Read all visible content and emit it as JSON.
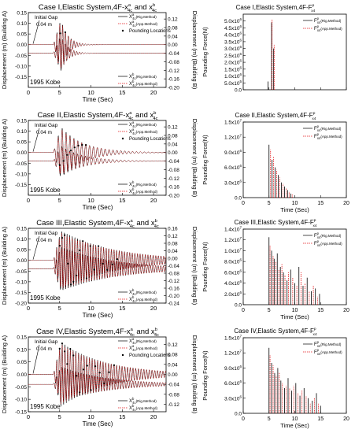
{
  "figure_caption": "",
  "chart_data": [
    {
      "type": "line",
      "panel": "left-1",
      "title": "Case I,Elastic System,4F-x^a_4c and x^b_4c",
      "title_parts": {
        "main": "Case I,Elastic System,4F-x",
        "sup_a": "a",
        "sub_a": "4c",
        "and": " and x",
        "sup_b": "b",
        "sub_b": "4c"
      },
      "xlabel": "Time (Sec)",
      "ylabel_left": "Displacement (m) (Building A)",
      "ylabel_right": "Displacement (m) (Building B)",
      "xlim": [
        0,
        22
      ],
      "ylim_left": [
        -0.2,
        0.15
      ],
      "ylim_right": [
        -0.2,
        0.15
      ],
      "xticks": [
        0,
        5,
        10,
        15,
        20
      ],
      "yticks_left": [
        -0.15,
        -0.1,
        -0.05,
        0.0,
        0.05,
        0.1,
        0.15
      ],
      "yticks_right": [
        -0.2,
        -0.16,
        -0.12,
        -0.08,
        -0.04,
        0.0,
        0.04,
        0.08,
        0.12
      ],
      "annotations": [
        "Initial Gap",
        "0.04 m",
        "1995 Kobe"
      ],
      "legend_top": [
        "X^a_4c(Rig.Method)",
        "X^a_4c(App.Method)",
        "Pounding Locations"
      ],
      "legend_bottom": [
        "X^b_4c(Rig.Method)",
        "X^b_4c(App.Method)"
      ],
      "excitation_onset": 4,
      "peak_a": 0.12,
      "peak_b": -0.15,
      "decay": 0.9,
      "frequency": 2.2,
      "pounding_times": [
        5.1,
        5.9
      ]
    },
    {
      "type": "line",
      "panel": "left-2",
      "title": "Case II,Elastic System,4F-x^a_4c and x^b_4c",
      "title_parts": {
        "main": "Case II,Elastic System,4F-x",
        "sup_a": "a",
        "sub_a": "4c",
        "and": " and x",
        "sup_b": "b",
        "sub_b": "4c"
      },
      "xlabel": "Time (Sec)",
      "ylabel_left": "Displacement (m) (Building A)",
      "ylabel_right": "Displacement (m) (Building B)",
      "xlim": [
        0,
        22
      ],
      "ylim_left": [
        -0.2,
        0.15
      ],
      "ylim_right": [
        -0.2,
        0.15
      ],
      "xticks": [
        0,
        5,
        10,
        15,
        20
      ],
      "yticks_left": [
        -0.15,
        -0.1,
        -0.05,
        0.0,
        0.05,
        0.1,
        0.15
      ],
      "yticks_right": [
        -0.2,
        -0.16,
        -0.12,
        -0.08,
        -0.04,
        0.0,
        0.04,
        0.08,
        0.12
      ],
      "annotations": [
        "Initial Gap",
        "0.04 m",
        "1995 Kobe"
      ],
      "legend_top": [
        "X^a_4c(Rig.Method)",
        "X^a_4c(App.Method)",
        "Pounding Locations"
      ],
      "legend_bottom": [
        "X^b_4c(Rig.Method)",
        "X^b_4c(App.Method)"
      ],
      "excitation_onset": 4,
      "peak_a": 0.12,
      "peak_b": -0.13,
      "decay": 0.28,
      "frequency": 1.6,
      "pounding_times": [
        5.0,
        5.6,
        6.2,
        6.8,
        7.4,
        8.0,
        8.6,
        9.2
      ]
    },
    {
      "type": "line",
      "panel": "left-3",
      "title": "Case III,Elastic System,4F-x^a_4c and x^b_4c",
      "title_parts": {
        "main": "Case III,Elastic System,4F-x",
        "sup_a": "a",
        "sub_a": "4c",
        "and": " and x",
        "sup_b": "b",
        "sub_b": "4c"
      },
      "xlabel": "Time (Sec)",
      "ylabel_left": "Displacement (m) (Building A)",
      "ylabel_right": "Displacement (m) (Building B)",
      "xlim": [
        0,
        22
      ],
      "ylim_left": [
        -0.2,
        0.15
      ],
      "ylim_right": [
        -0.24,
        0.16
      ],
      "xticks": [
        0,
        5,
        10,
        15,
        20
      ],
      "yticks_left": [
        -0.2,
        -0.15,
        -0.1,
        -0.05,
        0.0,
        0.05,
        0.1,
        0.15
      ],
      "yticks_right": [
        -0.24,
        -0.2,
        -0.16,
        -0.12,
        -0.08,
        -0.04,
        0.0,
        0.04,
        0.08,
        0.12,
        0.16
      ],
      "annotations": [
        "Initial Gap",
        "0.04 m",
        "1995 Kobe"
      ],
      "legend_top": [],
      "legend_bottom": [
        "X^b_4c(Rig.Method)",
        "X^b_4c(App.Method)"
      ],
      "excitation_onset": 4,
      "peak_a": 0.14,
      "peak_b": -0.19,
      "decay": 0.12,
      "frequency": 2.4,
      "pounding_times": [
        5.0,
        5.4,
        5.8,
        6.3,
        6.8,
        7.2,
        7.7,
        8.2,
        8.7,
        9.3,
        9.9,
        10.5,
        11.2,
        11.9,
        12.6,
        13.4,
        14.2
      ]
    },
    {
      "type": "line",
      "panel": "left-4",
      "title": "Case IV,Elastic System,4F-x^a_4c and x^b_4c",
      "title_parts": {
        "main": "Case IV,Elastic System,4F-x",
        "sup_a": "a",
        "sub_a": "4c",
        "and": " and x",
        "sup_b": "b",
        "sub_b": "4c"
      },
      "xlabel": "Time (Sec)",
      "ylabel_left": "Displacement (m) (Building A)",
      "ylabel_right": "Displacement (m) (Building B)",
      "xlim": [
        0,
        22
      ],
      "ylim_left": [
        -0.15,
        0.15
      ],
      "ylim_right": [
        -0.15,
        0.15
      ],
      "xticks": [
        0,
        5,
        10,
        15,
        20
      ],
      "yticks_left": [
        -0.15,
        -0.1,
        -0.05,
        0.0,
        0.05,
        0.1,
        0.15
      ],
      "yticks_right": [
        -0.12,
        -0.08,
        -0.04,
        0.0,
        0.04,
        0.08,
        0.12
      ],
      "annotations": [
        "Initial Gap",
        "0.04 m",
        "1995 Kobe"
      ],
      "legend_top": [
        "X^a_4c(Rig.Method)",
        "X^a_4c(App.Method)",
        "Pounding Locations"
      ],
      "legend_bottom": [
        "X^b_4c(Rig.Method)",
        "X^b_4c(App.Method)"
      ],
      "excitation_onset": 4,
      "peak_a": 0.13,
      "peak_b": -0.13,
      "decay": 0.14,
      "frequency": 2.3,
      "pounding_times": [
        5.0,
        5.4,
        5.8,
        6.2,
        6.7,
        7.2,
        7.7,
        8.2,
        8.8,
        9.4,
        10.0,
        10.7,
        11.4,
        12.1,
        12.9,
        13.7
      ]
    },
    {
      "type": "bar",
      "panel": "right-1",
      "title": "Case I,Elastic System,4F-F^p_x4",
      "title_parts": {
        "main": "Case I,Elastic System,4F-F",
        "sup": "p",
        "sub": "x4"
      },
      "ylabel": "Pounding Force(N)",
      "xlabel": "",
      "xlim": [
        0,
        20
      ],
      "ylim": [
        0,
        5500000
      ],
      "xticks": [
        0,
        5,
        10,
        15,
        20
      ],
      "ytick_labels": [
        "0.0",
        "5.0x10^5",
        "1.0x10^6",
        "1.5x10^6",
        "2.0x10^6",
        "2.5x10^6",
        "3.0x10^6",
        "3.5x10^6",
        "4.0x10^6",
        "4.5x10^6",
        "5.0x10^6"
      ],
      "yticks": [
        0,
        500000,
        1000000,
        1500000,
        2000000,
        2500000,
        3000000,
        3500000,
        4000000,
        4500000,
        5000000
      ],
      "legend": [
        "F^p_x4(Rig.Method)",
        "F^p_x4(App.Method)"
      ],
      "series": [
        {
          "name": "F^p_x4(Rig.Method)",
          "x": [
            4.8,
            5.5,
            5.9
          ],
          "values": [
            600000,
            4900000,
            3000000
          ]
        },
        {
          "name": "F^p_x4(App.Method)",
          "x": [
            5.6,
            6.0
          ],
          "values": [
            5100000,
            3300000
          ]
        }
      ]
    },
    {
      "type": "bar",
      "panel": "right-2",
      "title": "Case II,Elastic System,4F-F^p_x4",
      "title_parts": {
        "main": "Case II,Elastic System,4F-F",
        "sup": "p",
        "sub": "x4"
      },
      "ylabel": "Pounding Force(N)",
      "xlabel": "Time (Sec)",
      "xlim": [
        0,
        20
      ],
      "ylim": [
        0,
        15000000
      ],
      "xticks": [
        0,
        5,
        10,
        15,
        20
      ],
      "ytick_labels": [
        "0.0",
        "3.0x10^6",
        "6.0x10^6",
        "9.0x10^6",
        "1.2x10^7",
        "1.5x10^7"
      ],
      "yticks": [
        0,
        3000000,
        6000000,
        9000000,
        12000000,
        15000000
      ],
      "legend": [
        "F^p_x4(Rig.Method)",
        "F^p_x4(App.Method)"
      ],
      "series": [
        {
          "name": "F^p_x4(Rig.Method)",
          "x": [
            5.0,
            5.6,
            6.2,
            6.8,
            7.4,
            8.0,
            8.6,
            9.2
          ],
          "values": [
            10500000,
            7500000,
            6000000,
            4500000,
            3000000,
            2200000,
            1500000,
            800000
          ]
        },
        {
          "name": "F^p_x4(App.Method)",
          "x": [
            5.3,
            5.9,
            6.5,
            7.1,
            7.7,
            8.3,
            8.9,
            9.5
          ],
          "values": [
            9500000,
            8200000,
            5500000,
            4000000,
            2800000,
            1800000,
            1200000,
            600000
          ]
        }
      ]
    },
    {
      "type": "bar",
      "panel": "right-3",
      "title": "Case III,Elastic System,4F-F^p_x4",
      "title_parts": {
        "main": "Case III,Elastic System,4F-F",
        "sup": "p",
        "sub": "x4"
      },
      "ylabel": "Pounding Force(N)",
      "xlabel": "Time (Sec)",
      "xlim": [
        0,
        20
      ],
      "ylim": [
        0,
        14000000
      ],
      "xticks": [
        0,
        5,
        10,
        15,
        20
      ],
      "ytick_labels": [
        "0.0",
        "2.0x10^6",
        "4.0x10^6",
        "6.0x10^6",
        "8.0x10^6",
        "1.0x10^7",
        "1.2x10^7",
        "1.4x10^7"
      ],
      "yticks": [
        0,
        2000000,
        4000000,
        6000000,
        8000000,
        10000000,
        12000000,
        14000000
      ],
      "legend": [
        "F^p_x4(Rig.Method)",
        "F^p_x4(App.Method)"
      ],
      "series": [
        {
          "name": "F^p_x4(Rig.Method)",
          "x": [
            5.0,
            5.5,
            6.0,
            6.6,
            7.2,
            7.8,
            8.5,
            9.2,
            10.0,
            10.8,
            11.6,
            12.4,
            13.2,
            14.0,
            14.8
          ],
          "values": [
            12500000,
            10000000,
            8500000,
            9500000,
            7000000,
            6000000,
            4500000,
            6500000,
            4000000,
            7000000,
            3500000,
            5000000,
            2500000,
            3000000,
            2000000
          ]
        },
        {
          "name": "F^p_x4(App.Method)",
          "x": [
            5.2,
            5.8,
            6.3,
            6.9,
            7.5,
            8.1,
            8.8,
            9.6,
            10.4,
            11.2,
            12.0,
            12.8,
            13.6,
            14.4
          ],
          "values": [
            11000000,
            9000000,
            8000000,
            6500000,
            7500000,
            5500000,
            6000000,
            5000000,
            3500000,
            6000000,
            4000000,
            2500000,
            3500000,
            1500000
          ]
        }
      ]
    },
    {
      "type": "bar",
      "panel": "right-4",
      "title": "Case IV,Elastic System,4F-F^p_x4",
      "title_parts": {
        "main": "Case IV,Elastic System,4F-F",
        "sup": "p",
        "sub": "x4"
      },
      "ylabel": "Pounding Force(N)",
      "xlabel": "Time (Sec)",
      "xlim": [
        0,
        20
      ],
      "ylim": [
        0,
        15000000
      ],
      "xticks": [
        0,
        5,
        10,
        15,
        20
      ],
      "ytick_labels": [
        "0.0",
        "3.0x10^6",
        "6.0x10^6",
        "9.0x10^6",
        "1.2x10^7",
        "1.5x10^7"
      ],
      "yticks": [
        0,
        3000000,
        6000000,
        9000000,
        12000000,
        15000000
      ],
      "legend": [
        "F^p_x4(Rig.Method)",
        "F^p_x4(App.Method)"
      ],
      "series": [
        {
          "name": "F^p_x4(Rig.Method)",
          "x": [
            5.0,
            5.5,
            6.1,
            6.7,
            7.3,
            8.0,
            8.7,
            9.4,
            10.2,
            11.0,
            11.8,
            12.6,
            13.4,
            14.2,
            15.0
          ],
          "values": [
            13000000,
            10000000,
            8000000,
            9000000,
            6500000,
            5000000,
            7000000,
            4500000,
            6000000,
            3500000,
            5000000,
            3000000,
            2500000,
            4000000,
            1500000
          ]
        },
        {
          "name": "F^p_x4(App.Method)",
          "x": [
            5.2,
            5.8,
            6.4,
            7.0,
            7.6,
            8.3,
            9.0,
            9.8,
            10.6,
            11.4,
            12.2,
            13.0,
            13.8,
            14.6
          ],
          "values": [
            11500000,
            9500000,
            7500000,
            8000000,
            6000000,
            5500000,
            5000000,
            5500000,
            4000000,
            4500000,
            3500000,
            2000000,
            3000000,
            2000000
          ]
        }
      ]
    }
  ],
  "colors": {
    "rig": "#000000",
    "app": "#e41a1c",
    "marker": "#000000"
  }
}
